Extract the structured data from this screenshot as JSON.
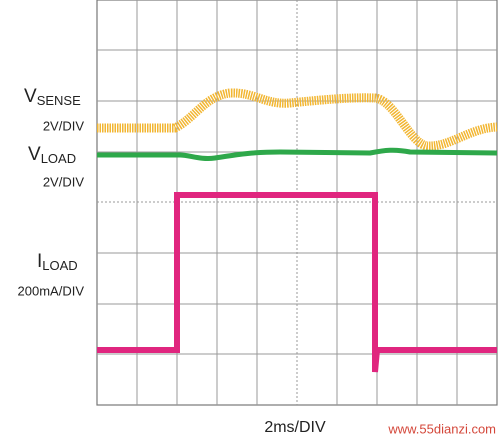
{
  "labels": [
    {
      "symbol": "V",
      "subscript": "SENSE",
      "scale": "2V/DIV"
    },
    {
      "symbol": "V",
      "subscript": "LOAD",
      "scale": "2V/DIV"
    },
    {
      "symbol": "I",
      "subscript": "LOAD",
      "scale": "200mA/DIV"
    }
  ],
  "time_scale": "2ms/DIV",
  "watermark": "www.55dianzi.com"
}
